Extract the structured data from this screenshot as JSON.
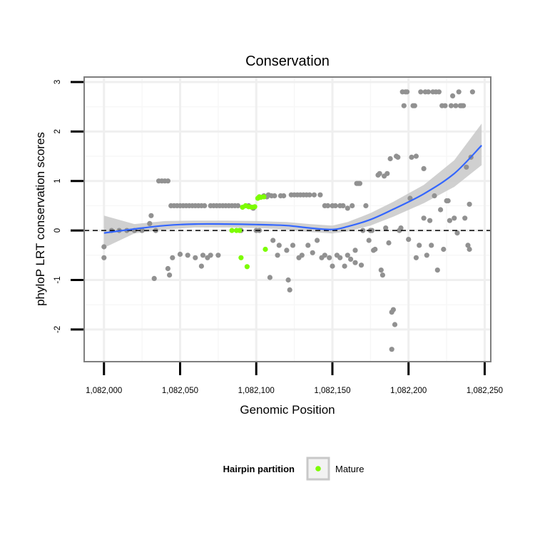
{
  "chart_data": {
    "type": "scatter",
    "title": "Conservation",
    "xlabel": "Genomic Position",
    "ylabel": "phyloP LRT conservation scores",
    "xlim": [
      1081987,
      1082254
    ],
    "ylim": [
      -2.65,
      3.1
    ],
    "x_ticks": [
      1082000,
      1082050,
      1082100,
      1082150,
      1082200,
      1082250
    ],
    "x_tick_labels": [
      "1,082,000",
      "1,082,050",
      "1,082,100",
      "1,082,150",
      "1,082,200",
      "1,082,250"
    ],
    "y_ticks": [
      -2,
      -1,
      0,
      1,
      2,
      3
    ],
    "y_tick_labels": [
      "-2",
      "-1",
      "0",
      "1",
      "2",
      "3"
    ],
    "grid": true,
    "reference_line": {
      "y": 0,
      "style": "dashed"
    },
    "colors": {
      "other": "#919191",
      "mature": "#7cfc00",
      "smooth": "#3366ff",
      "ribbon": "#c8c8c8"
    },
    "legend": {
      "title": "Hairpin partition",
      "position": "bottom",
      "entries": [
        {
          "label": "Mature",
          "color": "#7cfc00"
        }
      ]
    },
    "series": [
      {
        "name": "Other",
        "points": [
          [
            1082000,
            -0.55
          ],
          [
            1082000,
            -0.33
          ],
          [
            1082005,
            0
          ],
          [
            1082010,
            0
          ],
          [
            1082015,
            0
          ],
          [
            1082020,
            0
          ],
          [
            1082025,
            0
          ],
          [
            1082030,
            0.14
          ],
          [
            1082031,
            0.3
          ],
          [
            1082033,
            -0.97
          ],
          [
            1082034,
            0
          ],
          [
            1082036,
            1
          ],
          [
            1082038,
            1
          ],
          [
            1082040,
            1
          ],
          [
            1082042,
            1
          ],
          [
            1082042,
            -0.77
          ],
          [
            1082043,
            -0.9
          ],
          [
            1082044,
            0.5
          ],
          [
            1082045,
            -0.55
          ],
          [
            1082046,
            0.5
          ],
          [
            1082048,
            0.5
          ],
          [
            1082050,
            -0.48
          ],
          [
            1082050,
            0.5
          ],
          [
            1082052,
            0.5
          ],
          [
            1082054,
            0.5
          ],
          [
            1082055,
            -0.5
          ],
          [
            1082056,
            0.5
          ],
          [
            1082058,
            0.5
          ],
          [
            1082060,
            0.5
          ],
          [
            1082060,
            -0.55
          ],
          [
            1082062,
            0.5
          ],
          [
            1082064,
            0.5
          ],
          [
            1082064,
            -0.72
          ],
          [
            1082065,
            -0.5
          ],
          [
            1082066,
            0.5
          ],
          [
            1082068,
            -0.55
          ],
          [
            1082070,
            0.5
          ],
          [
            1082070,
            -0.5
          ],
          [
            1082072,
            0.5
          ],
          [
            1082074,
            0.5
          ],
          [
            1082075,
            -0.5
          ],
          [
            1082076,
            0.5
          ],
          [
            1082078,
            0.5
          ],
          [
            1082080,
            0.5
          ],
          [
            1082082,
            0.5
          ],
          [
            1082084,
            0.5
          ],
          [
            1082086,
            0.5
          ],
          [
            1082088,
            0.5
          ],
          [
            1082090,
            0
          ],
          [
            1082095,
            0.5
          ],
          [
            1082098,
            0.45
          ],
          [
            1082100,
            0
          ],
          [
            1082102,
            0
          ],
          [
            1082105,
            0.7
          ],
          [
            1082107,
            0.68
          ],
          [
            1082108,
            0.72
          ],
          [
            1082109,
            -0.95
          ],
          [
            1082110,
            0.7
          ],
          [
            1082111,
            -0.2
          ],
          [
            1082112,
            0.7
          ],
          [
            1082114,
            -0.5
          ],
          [
            1082115,
            -0.3
          ],
          [
            1082116,
            0.7
          ],
          [
            1082118,
            0.7
          ],
          [
            1082120,
            -0.4
          ],
          [
            1082121,
            -1.0
          ],
          [
            1082122,
            -1.2
          ],
          [
            1082123,
            0.72
          ],
          [
            1082124,
            -0.3
          ],
          [
            1082125,
            0.72
          ],
          [
            1082127,
            0.72
          ],
          [
            1082128,
            -0.55
          ],
          [
            1082129,
            0.72
          ],
          [
            1082130,
            -0.5
          ],
          [
            1082131,
            0.72
          ],
          [
            1082133,
            0.72
          ],
          [
            1082134,
            -0.3
          ],
          [
            1082135,
            0.72
          ],
          [
            1082137,
            -0.45
          ],
          [
            1082138,
            0.72
          ],
          [
            1082140,
            -0.2
          ],
          [
            1082142,
            0.72
          ],
          [
            1082143,
            -0.55
          ],
          [
            1082145,
            0.5
          ],
          [
            1082145,
            -0.5
          ],
          [
            1082147,
            0.5
          ],
          [
            1082148,
            -0.55
          ],
          [
            1082150,
            0.5
          ],
          [
            1082150,
            -0.72
          ],
          [
            1082152,
            0.5
          ],
          [
            1082153,
            -0.5
          ],
          [
            1082155,
            0.5
          ],
          [
            1082155,
            -0.55
          ],
          [
            1082157,
            0.5
          ],
          [
            1082158,
            -0.72
          ],
          [
            1082160,
            0.45
          ],
          [
            1082160,
            -0.5
          ],
          [
            1082162,
            -0.58
          ],
          [
            1082163,
            0.5
          ],
          [
            1082165,
            -0.65
          ],
          [
            1082165,
            -0.4
          ],
          [
            1082166,
            0.95
          ],
          [
            1082167,
            0.95
          ],
          [
            1082168,
            0.95
          ],
          [
            1082169,
            -0.7
          ],
          [
            1082170,
            0
          ],
          [
            1082172,
            0.5
          ],
          [
            1082174,
            -0.2
          ],
          [
            1082175,
            0
          ],
          [
            1082176,
            0
          ],
          [
            1082177,
            -0.4
          ],
          [
            1082178,
            -0.38
          ],
          [
            1082180,
            1.12
          ],
          [
            1082181,
            1.15
          ],
          [
            1082182,
            -0.8
          ],
          [
            1082183,
            -0.9
          ],
          [
            1082184,
            1.1
          ],
          [
            1082185,
            0.05
          ],
          [
            1082186,
            1.15
          ],
          [
            1082187,
            -0.25
          ],
          [
            1082188,
            1.45
          ],
          [
            1082189,
            -1.65
          ],
          [
            1082189,
            -2.4
          ],
          [
            1082190,
            -1.6
          ],
          [
            1082191,
            -1.9
          ],
          [
            1082192,
            1.5
          ],
          [
            1082193,
            1.48
          ],
          [
            1082194,
            0
          ],
          [
            1082195,
            0.05
          ],
          [
            1082196,
            2.8
          ],
          [
            1082197,
            2.52
          ],
          [
            1082198,
            2.8
          ],
          [
            1082199,
            2.8
          ],
          [
            1082200,
            -0.18
          ],
          [
            1082201,
            0.65
          ],
          [
            1082202,
            1.48
          ],
          [
            1082203,
            2.52
          ],
          [
            1082204,
            2.52
          ],
          [
            1082205,
            1.5
          ],
          [
            1082205,
            -0.55
          ],
          [
            1082207,
            -0.3
          ],
          [
            1082208,
            2.8
          ],
          [
            1082210,
            0.25
          ],
          [
            1082210,
            1.25
          ],
          [
            1082211,
            2.8
          ],
          [
            1082212,
            -0.5
          ],
          [
            1082213,
            2.8
          ],
          [
            1082214,
            0.2
          ],
          [
            1082215,
            -0.3
          ],
          [
            1082216,
            2.8
          ],
          [
            1082217,
            0.7
          ],
          [
            1082218,
            2.8
          ],
          [
            1082219,
            -0.8
          ],
          [
            1082220,
            2.8
          ],
          [
            1082221,
            0.42
          ],
          [
            1082222,
            2.52
          ],
          [
            1082223,
            -0.38
          ],
          [
            1082224,
            2.52
          ],
          [
            1082225,
            0.6
          ],
          [
            1082226,
            0.6
          ],
          [
            1082227,
            0.2
          ],
          [
            1082228,
            2.52
          ],
          [
            1082229,
            2.72
          ],
          [
            1082230,
            0.25
          ],
          [
            1082231,
            2.52
          ],
          [
            1082232,
            -0.05
          ],
          [
            1082233,
            2.8
          ],
          [
            1082234,
            2.52
          ],
          [
            1082235,
            2.52
          ],
          [
            1082236,
            2.52
          ],
          [
            1082237,
            0.25
          ],
          [
            1082238,
            1.28
          ],
          [
            1082239,
            -0.3
          ],
          [
            1082240,
            0.53
          ],
          [
            1082240,
            -0.38
          ],
          [
            1082241,
            1.48
          ],
          [
            1082242,
            2.8
          ]
        ]
      },
      {
        "name": "Mature",
        "points": [
          [
            1082084,
            0
          ],
          [
            1082087,
            0
          ],
          [
            1082089,
            0
          ],
          [
            1082090,
            -0.55
          ],
          [
            1082091,
            0.47
          ],
          [
            1082093,
            0.5
          ],
          [
            1082094,
            -0.73
          ],
          [
            1082095,
            0.48
          ],
          [
            1082097,
            0.47
          ],
          [
            1082099,
            0.48
          ],
          [
            1082101,
            0.65
          ],
          [
            1082102,
            0.68
          ],
          [
            1082103,
            0.67
          ],
          [
            1082105,
            0.68
          ],
          [
            1082106,
            -0.38
          ]
        ]
      }
    ],
    "smooth_fit": {
      "x": [
        1082000,
        1082020,
        1082040,
        1082060,
        1082080,
        1082100,
        1082120,
        1082135,
        1082150,
        1082160,
        1082175,
        1082190,
        1082210,
        1082230,
        1082248
      ],
      "y": [
        -0.05,
        0.03,
        0.1,
        0.13,
        0.13,
        0.12,
        0.1,
        0.05,
        0.02,
        0.08,
        0.22,
        0.43,
        0.74,
        1.15,
        1.72
      ],
      "lower": [
        -0.35,
        -0.06,
        0.02,
        0.06,
        0.06,
        0.05,
        0.02,
        -0.03,
        -0.06,
        -0.02,
        0.1,
        0.28,
        0.55,
        0.88,
        1.32
      ],
      "upper": [
        0.3,
        0.13,
        0.19,
        0.2,
        0.2,
        0.19,
        0.17,
        0.13,
        0.1,
        0.17,
        0.35,
        0.58,
        0.92,
        1.42,
        2.16
      ]
    }
  }
}
